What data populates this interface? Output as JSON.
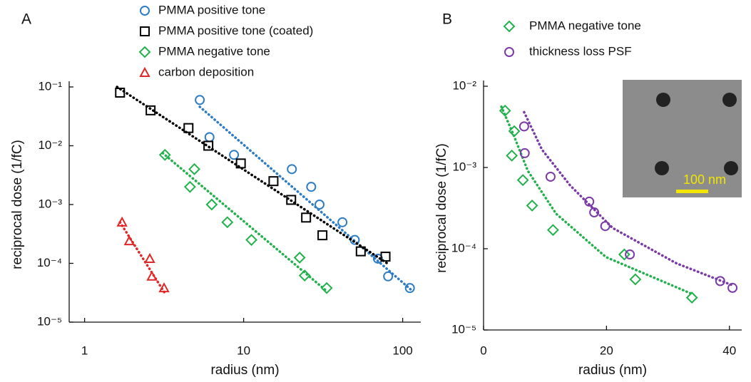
{
  "chart_data": [
    {
      "type": "scatter",
      "panel_label": "A",
      "xlabel": "radius (nm)",
      "ylabel": "reciprocal dose (1/fC)",
      "xscale": "log",
      "yscale": "log",
      "xlim": [
        0.8,
        130
      ],
      "ylim": [
        1e-05,
        0.1
      ],
      "xticks": [
        1,
        10,
        100
      ],
      "yticks": [
        {
          "value": 1e-05,
          "label": "10⁻⁵"
        },
        {
          "value": 0.0001,
          "label": "10⁻⁴"
        },
        {
          "value": 0.001,
          "label": "10⁻³"
        },
        {
          "value": 0.01,
          "label": "10⁻²"
        },
        {
          "value": 0.1,
          "label": "10⁻¹"
        }
      ],
      "legend": "top",
      "series": [
        {
          "name": "PMMA positive tone",
          "color": "#2e7dc4",
          "marker": "circle",
          "x": [
            5.3,
            6.1,
            8.7,
            20.1,
            26.6,
            30,
            41.8,
            50,
            69.9,
            81,
            111
          ],
          "values": [
            0.06,
            0.014,
            0.007,
            0.004,
            0.002,
            0.001,
            0.0005,
            0.00025,
            0.00012,
            6e-05,
            3.8e-05
          ],
          "fit": {
            "x": [
              5.3,
              115
            ],
            "values": [
              0.046,
              3.4e-05
            ]
          }
        },
        {
          "name": "PMMA positive tone (coated)",
          "color": "#000000",
          "marker": "square",
          "x": [
            1.67,
            2.6,
            4.5,
            6.0,
            9.6,
            15.4,
            19.9,
            24.7,
            31.3,
            54.5,
            78
          ],
          "values": [
            0.08,
            0.04,
            0.02,
            0.01,
            0.005,
            0.0025,
            0.0012,
            0.0006,
            0.0003,
            0.00016,
            0.00013
          ],
          "fit": {
            "x": [
              1.6,
              80
            ],
            "values": [
              0.1,
              0.0001
            ]
          }
        },
        {
          "name": "PMMA negative tone",
          "color": "#22b14c",
          "marker": "diamond",
          "x": [
            3.2,
            4.9,
            4.6,
            6.3,
            7.9,
            11.2,
            22.5,
            24.2,
            33.3
          ],
          "values": [
            0.007,
            0.004,
            0.002,
            0.001,
            0.0005,
            0.00025,
            0.000125,
            6.2e-05,
            3.8e-05
          ],
          "fit": {
            "x": [
              3.1,
              33.6
            ],
            "values": [
              0.0075,
              3.3e-05
            ]
          }
        },
        {
          "name": "carbon deposition",
          "color": "#e02828",
          "marker": "triangle",
          "x": [
            1.72,
            1.91,
            2.57,
            2.65,
            3.16
          ],
          "values": [
            0.0005,
            0.00024,
            0.00012,
            6e-05,
            3.8e-05
          ],
          "fit": {
            "x": [
              1.67,
              3.2
            ],
            "values": [
              0.0005,
              3.1e-05
            ]
          }
        }
      ]
    },
    {
      "type": "scatter",
      "panel_label": "B",
      "xlabel": "radius (nm)",
      "ylabel": "reciprocal dose (1/fC)",
      "xscale": "linear",
      "yscale": "log",
      "xlim": [
        0,
        42
      ],
      "ylim": [
        1e-05,
        0.01
      ],
      "xticks": [
        0,
        20,
        40
      ],
      "yticks": [
        {
          "value": 1e-05,
          "label": "10⁻⁵"
        },
        {
          "value": 0.0001,
          "label": "10⁻⁴"
        },
        {
          "value": 0.001,
          "label": "10⁻³"
        },
        {
          "value": 0.01,
          "label": "10⁻²"
        }
      ],
      "legend": "top",
      "inset_scale_label": "100 nm",
      "series": [
        {
          "name": "PMMA negative tone",
          "color": "#22b14c",
          "marker": "diamond",
          "x": [
            3.5,
            5.0,
            4.6,
            6.4,
            7.9,
            11.3,
            22.9,
            24.7,
            33.9
          ],
          "values": [
            0.005,
            0.0028,
            0.0014,
            0.0007,
            0.00034,
            0.00017,
            8.5e-05,
            4.2e-05,
            2.5e-05
          ],
          "fit": {
            "x": [
              2.9,
              4.9,
              7.2,
              11.8,
              19.9,
              33.8
            ],
            "values": [
              0.0056,
              0.0025,
              0.00091,
              0.00027,
              7.9e-05,
              2.8e-05
            ]
          }
        },
        {
          "name": "thickness loss PSF",
          "color": "#7a3aa8",
          "marker": "circle",
          "x": [
            6.6,
            6.7,
            10.9,
            17.2,
            18.0,
            19.8,
            23.8,
            38.5,
            40.5
          ],
          "values": [
            0.0032,
            0.0015,
            0.00077,
            0.00038,
            0.00028,
            0.00019,
            8.5e-05,
            4e-05,
            3.3e-05
          ],
          "fit": {
            "x": [
              6.6,
              9.5,
              14.1,
              21,
              31.4,
              40.7
            ],
            "values": [
              0.0048,
              0.00166,
              0.0006,
              0.00018,
              6.6e-05,
              3.5e-05
            ]
          }
        }
      ]
    }
  ]
}
